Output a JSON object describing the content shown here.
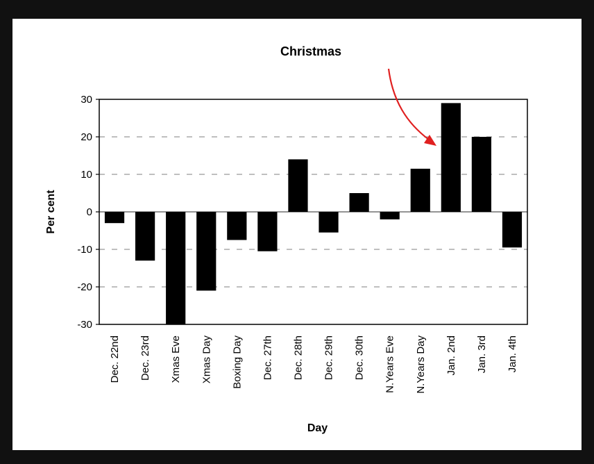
{
  "chart_data": {
    "type": "bar",
    "title": "Christmas",
    "xlabel": "Day",
    "ylabel": "Per cent",
    "ylim": [
      -30,
      30
    ],
    "yticks": [
      30,
      20,
      10,
      0,
      -10,
      -20,
      -30
    ],
    "categories": [
      "Dec. 22nd",
      "Dec. 23rd",
      "Xmas Eve",
      "Xmas Day",
      "Boxing Day",
      "Dec. 27th",
      "Dec. 28th",
      "Dec. 29th",
      "Dec. 30th",
      "N.Years Eve",
      "N.Years Day",
      "Jan. 2nd",
      "Jan. 3rd",
      "Jan. 4th"
    ],
    "values": [
      -3,
      -13,
      -30,
      -21,
      -7.5,
      -10.5,
      14,
      -5.5,
      5,
      -2,
      11.5,
      29,
      20,
      -9.5
    ],
    "grid": "dashed horizontal",
    "bar_color": "#000000",
    "annotation_color": "#e02020"
  }
}
